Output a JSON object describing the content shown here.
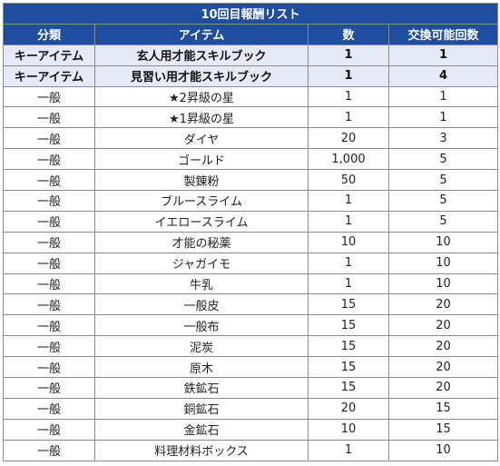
{
  "table": {
    "title": "10回目報酬リスト",
    "headers": {
      "category": "分類",
      "item": "アイテム",
      "count": "数",
      "exchanges": "交換可能回数"
    },
    "rows": [
      {
        "category": "キーアイテム",
        "item": "玄人用才能スキルブック",
        "count": "1",
        "exchanges": "1",
        "key": true
      },
      {
        "category": "キーアイテム",
        "item": "見習い用才能スキルブック",
        "count": "1",
        "exchanges": "4",
        "key": true
      },
      {
        "category": "一般",
        "item": "★2昇級の星",
        "count": "1",
        "exchanges": "1"
      },
      {
        "category": "一般",
        "item": "★1昇級の星",
        "count": "1",
        "exchanges": "1"
      },
      {
        "category": "一般",
        "item": "ダイヤ",
        "count": "20",
        "exchanges": "3"
      },
      {
        "category": "一般",
        "item": "ゴールド",
        "count": "1,000",
        "exchanges": "5"
      },
      {
        "category": "一般",
        "item": "製錬粉",
        "count": "50",
        "exchanges": "5"
      },
      {
        "category": "一般",
        "item": "ブルースライム",
        "count": "1",
        "exchanges": "5"
      },
      {
        "category": "一般",
        "item": "イエロースライム",
        "count": "1",
        "exchanges": "5"
      },
      {
        "category": "一般",
        "item": "才能の秘薬",
        "count": "10",
        "exchanges": "10"
      },
      {
        "category": "一般",
        "item": "ジャガイモ",
        "count": "1",
        "exchanges": "10"
      },
      {
        "category": "一般",
        "item": "牛乳",
        "count": "1",
        "exchanges": "10"
      },
      {
        "category": "一般",
        "item": "一般皮",
        "count": "15",
        "exchanges": "20"
      },
      {
        "category": "一般",
        "item": "一般布",
        "count": "15",
        "exchanges": "20"
      },
      {
        "category": "一般",
        "item": "泥炭",
        "count": "15",
        "exchanges": "20"
      },
      {
        "category": "一般",
        "item": "原木",
        "count": "15",
        "exchanges": "20"
      },
      {
        "category": "一般",
        "item": "鉄鉱石",
        "count": "15",
        "exchanges": "20"
      },
      {
        "category": "一般",
        "item": "銅鉱石",
        "count": "20",
        "exchanges": "15"
      },
      {
        "category": "一般",
        "item": "金鉱石",
        "count": "10",
        "exchanges": "15"
      },
      {
        "category": "一般",
        "item": "料理材料ボックス",
        "count": "1",
        "exchanges": "10"
      }
    ]
  }
}
